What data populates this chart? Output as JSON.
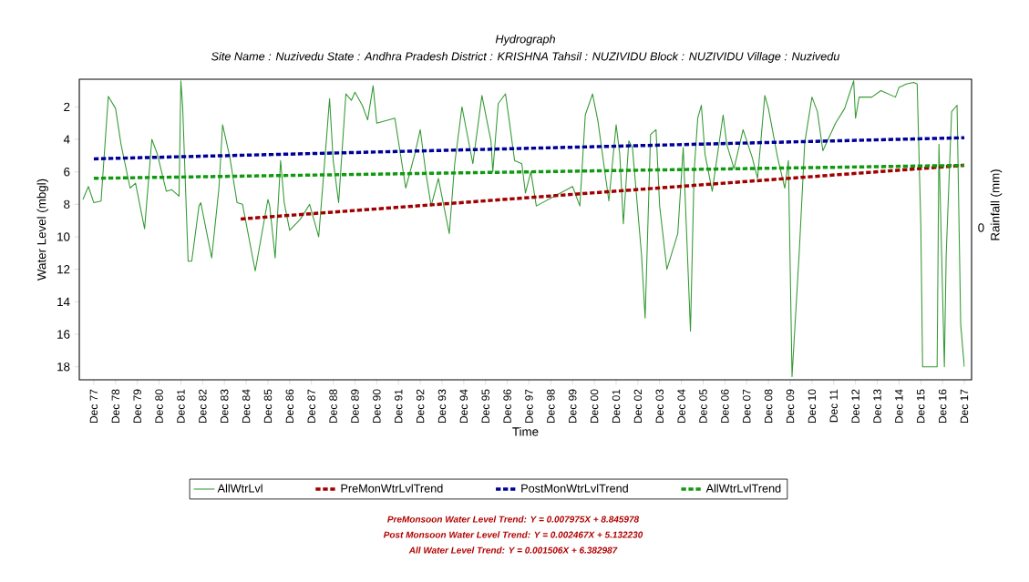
{
  "chart_data": {
    "type": "line",
    "title": "Hydrograph",
    "subtitle": "Site Name : Nuzivedu  State : Andhra Pradesh District : KRISHNA  Tahsil : NUZIVIDU  Block : NUZIVIDU Village : Nuzivedu",
    "xlabel": "Time",
    "ylabel": "Water Level (mbgl)",
    "y2label": "Rainfall (mm)",
    "xlim": [
      "1977-04",
      "2018-04"
    ],
    "ylim": [
      18.8,
      0.3
    ],
    "yticks": [
      2,
      4,
      6,
      8,
      10,
      12,
      14,
      16,
      18
    ],
    "xticks": [
      {
        "value": "1977-12",
        "label": "Dec 77"
      },
      {
        "value": "1978-12",
        "label": "Dec 78"
      },
      {
        "value": "1979-12",
        "label": "Dec 79"
      },
      {
        "value": "1980-12",
        "label": "Dec 80"
      },
      {
        "value": "1981-12",
        "label": "Dec 81"
      },
      {
        "value": "1982-12",
        "label": "Dec 82"
      },
      {
        "value": "1983-12",
        "label": "Dec 83"
      },
      {
        "value": "1984-12",
        "label": "Dec 84"
      },
      {
        "value": "1985-12",
        "label": "Dec 85"
      },
      {
        "value": "1986-12",
        "label": "Dec 86"
      },
      {
        "value": "1987-12",
        "label": "Dec 87"
      },
      {
        "value": "1988-12",
        "label": "Dec 88"
      },
      {
        "value": "1989-12",
        "label": "Dec 89"
      },
      {
        "value": "1990-12",
        "label": "Dec 90"
      },
      {
        "value": "1991-12",
        "label": "Dec 91"
      },
      {
        "value": "1992-12",
        "label": "Dec 92"
      },
      {
        "value": "1993-12",
        "label": "Dec 93"
      },
      {
        "value": "1994-12",
        "label": "Dec 94"
      },
      {
        "value": "1995-12",
        "label": "Dec 95"
      },
      {
        "value": "1996-12",
        "label": "Dec 96"
      },
      {
        "value": "1997-12",
        "label": "Dec 97"
      },
      {
        "value": "1998-12",
        "label": "Dec 98"
      },
      {
        "value": "1999-12",
        "label": "Dec 99"
      },
      {
        "value": "2000-12",
        "label": "Dec 00"
      },
      {
        "value": "2001-12",
        "label": "Dec 01"
      },
      {
        "value": "2002-12",
        "label": "Dec 02"
      },
      {
        "value": "2003-12",
        "label": "Dec 03"
      },
      {
        "value": "2004-12",
        "label": "Dec 04"
      },
      {
        "value": "2005-12",
        "label": "Dec 05"
      },
      {
        "value": "2006-12",
        "label": "Dec 06"
      },
      {
        "value": "2007-12",
        "label": "Dec 07"
      },
      {
        "value": "2008-12",
        "label": "Dec 08"
      },
      {
        "value": "2009-12",
        "label": "Dec 09"
      },
      {
        "value": "2010-12",
        "label": "Dec 10"
      },
      {
        "value": "2011-12",
        "label": "Dec 11"
      },
      {
        "value": "2012-12",
        "label": "Dec 12"
      },
      {
        "value": "2013-12",
        "label": "Dec 13"
      },
      {
        "value": "2014-12",
        "label": "Dec 14"
      },
      {
        "value": "2015-12",
        "label": "Dec 15"
      },
      {
        "value": "2016-12",
        "label": "Dec 16"
      },
      {
        "value": "2017-12",
        "label": "Dec 17"
      }
    ],
    "legend": "bottom",
    "marker": "none",
    "series": [
      {
        "name": "AllWtrLvl",
        "color": "#339933",
        "line_style": "solid",
        "x": [
          "1977-06",
          "1977-09",
          "1977-12",
          "1978-04",
          "1978-08",
          "1978-12",
          "1979-03",
          "1979-08",
          "1979-11",
          "1980-04",
          "1980-08",
          "1980-11",
          "1981-04",
          "1981-07",
          "1981-11",
          "1981-12",
          "1982-01",
          "1982-04",
          "1982-06",
          "1982-10",
          "1982-11",
          "1983-05",
          "1983-09",
          "1983-11",
          "1984-03",
          "1984-07",
          "1984-10",
          "1985-05",
          "1985-12",
          "1986-01",
          "1986-04",
          "1986-07",
          "1986-09",
          "1986-12",
          "1987-06",
          "1987-11",
          "1988-04",
          "1988-07",
          "1988-10",
          "1988-12",
          "1989-03",
          "1989-07",
          "1989-10",
          "1989-12",
          "1990-04",
          "1990-07",
          "1990-10",
          "1990-12",
          "1991-10",
          "1992-04",
          "1992-09",
          "1992-12",
          "1993-03",
          "1993-06",
          "1993-10",
          "1994-01",
          "1994-04",
          "1994-07",
          "1994-11",
          "1995-05",
          "1995-10",
          "1996-03",
          "1996-04",
          "1996-07",
          "1996-11",
          "1997-01",
          "1997-04",
          "1997-08",
          "1997-10",
          "1998-01",
          "1998-04",
          "1999-12",
          "2000-04",
          "2000-07",
          "2000-11",
          "2001-02",
          "2001-08",
          "2001-12",
          "2002-02",
          "2002-04",
          "2002-07",
          "2002-09",
          "2003-02",
          "2003-04",
          "2003-07",
          "2003-10",
          "2003-12",
          "2004-04",
          "2004-10",
          "2005-01",
          "2005-05",
          "2005-07",
          "2005-09",
          "2005-11",
          "2006-01",
          "2006-05",
          "2006-11",
          "2007-01",
          "2007-05",
          "2007-10",
          "2008-03",
          "2008-06",
          "2008-10",
          "2008-12",
          "2009-05",
          "2009-09",
          "2009-11",
          "2010-01",
          "2010-05",
          "2010-08",
          "2010-12",
          "2011-03",
          "2011-06",
          "2012-01",
          "2012-06",
          "2012-11",
          "2012-12",
          "2013-02",
          "2013-09",
          "2014-02",
          "2014-10",
          "2014-12",
          "2015-04",
          "2015-08",
          "2015-10",
          "2015-12",
          "2016-01",
          "2016-09",
          "2016-10",
          "2017-01",
          "2017-02",
          "2017-05",
          "2017-08",
          "2017-10",
          "2017-12"
        ],
        "values": [
          7.7,
          6.9,
          7.9,
          7.8,
          1.35,
          2.1,
          4.3,
          7.0,
          6.7,
          9.5,
          4.0,
          4.9,
          7.2,
          7.1,
          7.5,
          0.4,
          2.0,
          11.5,
          11.5,
          8.1,
          7.9,
          11.3,
          7.0,
          3.1,
          5.1,
          7.9,
          8.0,
          12.1,
          7.7,
          8.1,
          11.3,
          5.3,
          7.9,
          9.6,
          8.9,
          8.0,
          10.0,
          5.8,
          1.5,
          5.3,
          7.9,
          1.2,
          1.6,
          1.1,
          1.9,
          2.8,
          0.7,
          3.0,
          2.7,
          7.0,
          4.9,
          3.4,
          6.0,
          8.1,
          6.4,
          8.1,
          9.8,
          5.5,
          2.0,
          5.5,
          1.3,
          4.1,
          6.0,
          1.8,
          1.2,
          2.8,
          5.3,
          5.5,
          7.3,
          6.0,
          8.1,
          6.9,
          8.1,
          2.5,
          1.2,
          2.9,
          7.8,
          3.1,
          4.9,
          9.2,
          4.1,
          4.5,
          11.1,
          15.0,
          3.7,
          3.4,
          8.1,
          12.0,
          9.8,
          4.5,
          15.8,
          6.0,
          2.7,
          1.9,
          4.9,
          7.2,
          2.5,
          4.3,
          5.8,
          3.4,
          5.1,
          6.4,
          1.3,
          2.1,
          5.1,
          7.0,
          5.3,
          18.6,
          10.9,
          4.2,
          1.4,
          2.3,
          4.7,
          3.0,
          2.1,
          0.4,
          2.7,
          1.4,
          1.4,
          1.0,
          1.4,
          0.8,
          0.6,
          0.5,
          0.6,
          9.2,
          18.0,
          18.0,
          4.3,
          18.0,
          11.1,
          2.3,
          1.9,
          15.4,
          18.0
        ]
      },
      {
        "name": "PreMonWtrLvlTrend",
        "color": "#a00000",
        "line_style": "dashed",
        "x": [
          "1984-09",
          "2017-12"
        ],
        "values": [
          8.9,
          5.6
        ]
      },
      {
        "name": "PostMonWtrLvlTrend",
        "color": "#000099",
        "line_style": "dashed",
        "x": [
          "1977-12",
          "2017-12"
        ],
        "values": [
          5.2,
          3.9
        ]
      },
      {
        "name": "AllWtrLvlTrend",
        "color": "#119911",
        "line_style": "dashed",
        "x": [
          "1977-12",
          "2017-12"
        ],
        "values": [
          6.4,
          5.6
        ]
      }
    ],
    "annotations": [
      "0",
      "PreMonsoon Water Level Trend: Y = 0.007975X + 8.845978",
      "Post Monsoon Water Level Trend: Y = 0.002467X + 5.132230",
      "All Water Level Trend: Y = 0.001506X + 6.382987"
    ]
  }
}
